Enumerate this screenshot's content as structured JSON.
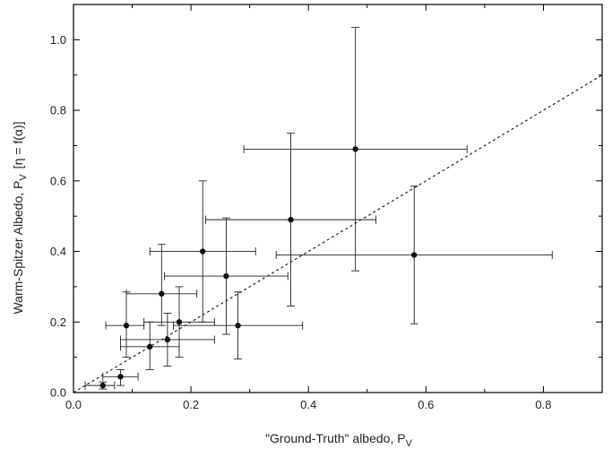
{
  "chart_data": {
    "type": "scatter",
    "title": "",
    "xlabel": "\"Ground-Truth\" albedo, P",
    "xlabel_sub": "V",
    "ylabel": "Warm-Spitzer Albedo, P",
    "ylabel_sub": "V",
    "ylabel_suffix": "[η = f(α)]",
    "xlim": [
      0.0,
      0.9
    ],
    "ylim": [
      0.0,
      1.1
    ],
    "x_ticks": [
      0.0,
      0.2,
      0.4,
      0.6,
      0.8
    ],
    "x_tick_labels": [
      "0.0",
      "0.2",
      "0.4",
      "0.6",
      "0.8"
    ],
    "y_ticks": [
      0.0,
      0.2,
      0.4,
      0.6,
      0.8,
      1.0
    ],
    "y_tick_labels": [
      "0.0",
      "0.2",
      "0.4",
      "0.6",
      "0.8",
      "1.0"
    ],
    "grid": false,
    "legend": "none",
    "reference_line": {
      "style": "dashed",
      "slope": 1,
      "intercept": 0,
      "from": [
        0,
        0
      ],
      "to": [
        0.9,
        0.9
      ]
    },
    "points": [
      {
        "x": 0.05,
        "y": 0.02,
        "xerr": [
          0.03,
          0.02
        ],
        "yerr": [
          0.01,
          0.01
        ]
      },
      {
        "x": 0.08,
        "y": 0.045,
        "xerr": [
          0.03,
          0.03
        ],
        "yerr": [
          0.025,
          0.02
        ]
      },
      {
        "x": 0.09,
        "y": 0.19,
        "xerr": [
          0.035,
          0.03
        ],
        "yerr": [
          0.09,
          0.095
        ]
      },
      {
        "x": 0.13,
        "y": 0.13,
        "xerr": [
          0.05,
          0.05
        ],
        "yerr": [
          0.065,
          0.07
        ]
      },
      {
        "x": 0.15,
        "y": 0.28,
        "xerr": [
          0.06,
          0.06
        ],
        "yerr": [
          0.09,
          0.14
        ]
      },
      {
        "x": 0.16,
        "y": 0.15,
        "xerr": [
          0.08,
          0.08
        ],
        "yerr": [
          0.075,
          0.075
        ]
      },
      {
        "x": 0.18,
        "y": 0.2,
        "xerr": [
          0.06,
          0.06
        ],
        "yerr": [
          0.1,
          0.1
        ]
      },
      {
        "x": 0.22,
        "y": 0.4,
        "xerr": [
          0.09,
          0.09
        ],
        "yerr": [
          0.2,
          0.2
        ]
      },
      {
        "x": 0.26,
        "y": 0.33,
        "xerr": [
          0.105,
          0.105
        ],
        "yerr": [
          0.165,
          0.165
        ]
      },
      {
        "x": 0.28,
        "y": 0.19,
        "xerr": [
          0.11,
          0.11
        ],
        "yerr": [
          0.095,
          0.095
        ]
      },
      {
        "x": 0.37,
        "y": 0.49,
        "xerr": [
          0.145,
          0.145
        ],
        "yerr": [
          0.245,
          0.245
        ]
      },
      {
        "x": 0.48,
        "y": 0.69,
        "xerr": [
          0.19,
          0.19
        ],
        "yerr": [
          0.345,
          0.345
        ]
      },
      {
        "x": 0.58,
        "y": 0.39,
        "xerr": [
          0.235,
          0.235
        ],
        "yerr": [
          0.195,
          0.195
        ]
      }
    ]
  }
}
